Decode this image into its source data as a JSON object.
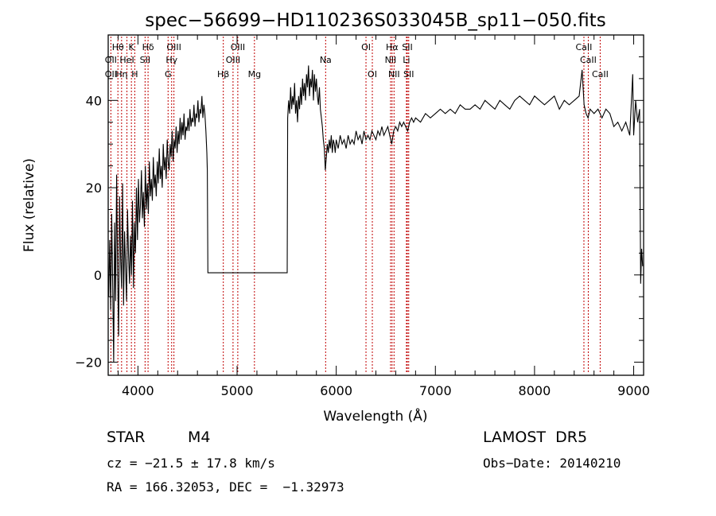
{
  "chart_data": {
    "type": "line",
    "title": "spec−56699−HD110236S033045B_sp11−050.fits",
    "xlabel": "Wavelength (Å)",
    "ylabel": "Flux (relative)",
    "xlim": [
      3700,
      9100
    ],
    "ylim": [
      -23,
      55
    ],
    "xticks": [
      4000,
      5000,
      6000,
      7000,
      8000,
      9000
    ],
    "yticks": [
      -20,
      0,
      20,
      40
    ],
    "grid": false,
    "line_color": "#000000",
    "marker_color": "#c00000",
    "spectral_lines": [
      {
        "label": "Hθ",
        "wavelength": 3798,
        "row": 1
      },
      {
        "label": "OII",
        "wavelength": 3727,
        "row": 2
      },
      {
        "label": "OII",
        "wavelength": 3727,
        "row": 3
      },
      {
        "label": "Hη",
        "wavelength": 3835,
        "row": 3
      },
      {
        "label": "K",
        "wavelength": 3934,
        "row": 1
      },
      {
        "label": "HeI",
        "wavelength": 3889,
        "row": 2
      },
      {
        "label": "H",
        "wavelength": 3968,
        "row": 3
      },
      {
        "label": "SII",
        "wavelength": 4072,
        "row": 2
      },
      {
        "label": "Hδ",
        "wavelength": 4102,
        "row": 1
      },
      {
        "label": "OIII",
        "wavelength": 4363,
        "row": 1
      },
      {
        "label": "Hγ",
        "wavelength": 4340,
        "row": 2
      },
      {
        "label": "G",
        "wavelength": 4304,
        "row": 3
      },
      {
        "label": "Hβ",
        "wavelength": 4861,
        "row": 3
      },
      {
        "label": "OIII",
        "wavelength": 4959,
        "row": 2
      },
      {
        "label": "OIII",
        "wavelength": 5007,
        "row": 1
      },
      {
        "label": "Mg",
        "wavelength": 5175,
        "row": 3
      },
      {
        "label": "Na",
        "wavelength": 5893,
        "row": 2
      },
      {
        "label": "OI",
        "wavelength": 6300,
        "row": 1
      },
      {
        "label": "OI",
        "wavelength": 6364,
        "row": 3
      },
      {
        "label": "Hα",
        "wavelength": 6563,
        "row": 1
      },
      {
        "label": "NII",
        "wavelength": 6548,
        "row": 2
      },
      {
        "label": "NII",
        "wavelength": 6583,
        "row": 3
      },
      {
        "label": "SII",
        "wavelength": 6717,
        "row": 1
      },
      {
        "label": "Li",
        "wavelength": 6708,
        "row": 2
      },
      {
        "label": "SII",
        "wavelength": 6731,
        "row": 3
      },
      {
        "label": "CaII",
        "wavelength": 8498,
        "row": 1
      },
      {
        "label": "CaII",
        "wavelength": 8542,
        "row": 2
      },
      {
        "label": "CaII",
        "wavelength": 8662,
        "row": 3
      }
    ],
    "spectrum": [
      [
        3705,
        -5
      ],
      [
        3715,
        8
      ],
      [
        3725,
        -8
      ],
      [
        3735,
        14
      ],
      [
        3745,
        -2
      ],
      [
        3755,
        -20
      ],
      [
        3765,
        12
      ],
      [
        3775,
        -6
      ],
      [
        3785,
        23
      ],
      [
        3795,
        1
      ],
      [
        3805,
        -14
      ],
      [
        3815,
        18
      ],
      [
        3825,
        4
      ],
      [
        3835,
        -3
      ],
      [
        3845,
        21
      ],
      [
        3855,
        -7
      ],
      [
        3865,
        10
      ],
      [
        3875,
        2
      ],
      [
        3885,
        -6
      ],
      [
        3895,
        15
      ],
      [
        3905,
        5
      ],
      [
        3915,
        -2
      ],
      [
        3925,
        9
      ],
      [
        3935,
        0
      ],
      [
        3945,
        17
      ],
      [
        3955,
        -3
      ],
      [
        3965,
        12
      ],
      [
        3975,
        5
      ],
      [
        3985,
        20
      ],
      [
        3995,
        8
      ],
      [
        4005,
        22
      ],
      [
        4015,
        12
      ],
      [
        4025,
        16
      ],
      [
        4035,
        24
      ],
      [
        4045,
        13
      ],
      [
        4055,
        19
      ],
      [
        4065,
        11
      ],
      [
        4075,
        25
      ],
      [
        4085,
        15
      ],
      [
        4095,
        21
      ],
      [
        4105,
        14
      ],
      [
        4115,
        26
      ],
      [
        4125,
        18
      ],
      [
        4135,
        22
      ],
      [
        4145,
        17
      ],
      [
        4155,
        27
      ],
      [
        4165,
        20
      ],
      [
        4175,
        23
      ],
      [
        4185,
        18
      ],
      [
        4195,
        26
      ],
      [
        4205,
        21
      ],
      [
        4215,
        29
      ],
      [
        4225,
        22
      ],
      [
        4235,
        25
      ],
      [
        4245,
        20
      ],
      [
        4255,
        30
      ],
      [
        4265,
        24
      ],
      [
        4275,
        27
      ],
      [
        4285,
        22
      ],
      [
        4295,
        31
      ],
      [
        4305,
        26
      ],
      [
        4315,
        24
      ],
      [
        4325,
        30
      ],
      [
        4335,
        27
      ],
      [
        4345,
        33
      ],
      [
        4355,
        26
      ],
      [
        4365,
        31
      ],
      [
        4375,
        29
      ],
      [
        4385,
        34
      ],
      [
        4395,
        28
      ],
      [
        4405,
        33
      ],
      [
        4415,
        30
      ],
      [
        4425,
        36
      ],
      [
        4435,
        31
      ],
      [
        4445,
        35
      ],
      [
        4455,
        32
      ],
      [
        4465,
        37
      ],
      [
        4475,
        31
      ],
      [
        4485,
        34
      ],
      [
        4495,
        33
      ],
      [
        4505,
        36
      ],
      [
        4515,
        33
      ],
      [
        4525,
        38
      ],
      [
        4535,
        34
      ],
      [
        4545,
        36
      ],
      [
        4555,
        35
      ],
      [
        4565,
        39
      ],
      [
        4575,
        34
      ],
      [
        4585,
        37
      ],
      [
        4595,
        36
      ],
      [
        4605,
        40
      ],
      [
        4615,
        35
      ],
      [
        4625,
        38
      ],
      [
        4635,
        37
      ],
      [
        4645,
        41
      ],
      [
        4655,
        36
      ],
      [
        4665,
        39
      ],
      [
        4675,
        37
      ],
      [
        4685,
        33
      ],
      [
        4695,
        28
      ],
      [
        4700,
        24
      ],
      [
        4705,
        0.5
      ],
      [
        4800,
        0.5
      ],
      [
        5000,
        0.5
      ],
      [
        5200,
        0.5
      ],
      [
        5400,
        0.5
      ],
      [
        5505,
        0.5
      ],
      [
        5510,
        36
      ],
      [
        5520,
        40
      ],
      [
        5530,
        37
      ],
      [
        5540,
        43
      ],
      [
        5550,
        38
      ],
      [
        5560,
        41
      ],
      [
        5570,
        39
      ],
      [
        5580,
        44
      ],
      [
        5590,
        37
      ],
      [
        5600,
        40
      ],
      [
        5610,
        35
      ],
      [
        5620,
        41
      ],
      [
        5630,
        38
      ],
      [
        5640,
        43
      ],
      [
        5650,
        39
      ],
      [
        5660,
        45
      ],
      [
        5670,
        41
      ],
      [
        5680,
        44
      ],
      [
        5690,
        40
      ],
      [
        5700,
        46
      ],
      [
        5710,
        43
      ],
      [
        5720,
        48
      ],
      [
        5730,
        41
      ],
      [
        5740,
        45
      ],
      [
        5750,
        43
      ],
      [
        5760,
        47
      ],
      [
        5770,
        40
      ],
      [
        5780,
        46
      ],
      [
        5790,
        42
      ],
      [
        5800,
        45
      ],
      [
        5810,
        41
      ],
      [
        5820,
        39
      ],
      [
        5830,
        43
      ],
      [
        5840,
        38
      ],
      [
        5850,
        36
      ],
      [
        5860,
        34
      ],
      [
        5870,
        31
      ],
      [
        5880,
        29
      ],
      [
        5890,
        24
      ],
      [
        5900,
        27
      ],
      [
        5910,
        30
      ],
      [
        5920,
        28
      ],
      [
        5930,
        31
      ],
      [
        5940,
        29
      ],
      [
        5950,
        32
      ],
      [
        5960,
        28
      ],
      [
        5970,
        31
      ],
      [
        5980,
        30
      ],
      [
        5990,
        28
      ],
      [
        6000,
        31
      ],
      [
        6020,
        29
      ],
      [
        6040,
        32
      ],
      [
        6060,
        30
      ],
      [
        6080,
        31
      ],
      [
        6100,
        29
      ],
      [
        6120,
        32
      ],
      [
        6140,
        30
      ],
      [
        6160,
        31
      ],
      [
        6180,
        30
      ],
      [
        6200,
        33
      ],
      [
        6220,
        31
      ],
      [
        6240,
        32
      ],
      [
        6260,
        30
      ],
      [
        6280,
        33
      ],
      [
        6300,
        31
      ],
      [
        6320,
        32
      ],
      [
        6340,
        31
      ],
      [
        6360,
        33
      ],
      [
        6380,
        32
      ],
      [
        6400,
        31
      ],
      [
        6420,
        33
      ],
      [
        6440,
        32
      ],
      [
        6460,
        34
      ],
      [
        6480,
        32
      ],
      [
        6500,
        33
      ],
      [
        6520,
        34
      ],
      [
        6540,
        32
      ],
      [
        6560,
        30
      ],
      [
        6580,
        33
      ],
      [
        6600,
        34
      ],
      [
        6620,
        33
      ],
      [
        6640,
        35
      ],
      [
        6660,
        34
      ],
      [
        6680,
        35
      ],
      [
        6700,
        34
      ],
      [
        6720,
        33
      ],
      [
        6740,
        35
      ],
      [
        6760,
        36
      ],
      [
        6780,
        35
      ],
      [
        6800,
        36
      ],
      [
        6850,
        35
      ],
      [
        6900,
        37
      ],
      [
        6950,
        36
      ],
      [
        7000,
        37
      ],
      [
        7050,
        38
      ],
      [
        7100,
        37
      ],
      [
        7150,
        38
      ],
      [
        7200,
        37
      ],
      [
        7250,
        39
      ],
      [
        7300,
        38
      ],
      [
        7350,
        38
      ],
      [
        7400,
        39
      ],
      [
        7450,
        38
      ],
      [
        7500,
        40
      ],
      [
        7550,
        39
      ],
      [
        7600,
        38
      ],
      [
        7650,
        40
      ],
      [
        7700,
        39
      ],
      [
        7750,
        38
      ],
      [
        7800,
        40
      ],
      [
        7850,
        41
      ],
      [
        7900,
        40
      ],
      [
        7950,
        39
      ],
      [
        8000,
        41
      ],
      [
        8050,
        40
      ],
      [
        8100,
        39
      ],
      [
        8150,
        40
      ],
      [
        8200,
        41
      ],
      [
        8250,
        38
      ],
      [
        8300,
        40
      ],
      [
        8350,
        39
      ],
      [
        8400,
        40
      ],
      [
        8450,
        41
      ],
      [
        8480,
        47
      ],
      [
        8500,
        39
      ],
      [
        8520,
        37
      ],
      [
        8540,
        36
      ],
      [
        8560,
        38
      ],
      [
        8600,
        37
      ],
      [
        8640,
        38
      ],
      [
        8680,
        36
      ],
      [
        8720,
        38
      ],
      [
        8760,
        37
      ],
      [
        8800,
        34
      ],
      [
        8840,
        35
      ],
      [
        8880,
        33
      ],
      [
        8920,
        35
      ],
      [
        8960,
        32
      ],
      [
        8990,
        46
      ],
      [
        9000,
        32
      ],
      [
        9020,
        40
      ],
      [
        9040,
        35
      ],
      [
        9060,
        38
      ],
      [
        9070,
        -2
      ],
      [
        9080,
        6
      ],
      [
        9090,
        2
      ]
    ]
  },
  "info": {
    "object_type": "STAR",
    "subclass": "M4",
    "survey": "LAMOST  DR5",
    "cz": "cz = −21.5 ± 17.8 km/s",
    "obs_date": "Obs−Date: 20140210",
    "coords": "RA = 166.32053, DEC =  −1.32973"
  }
}
